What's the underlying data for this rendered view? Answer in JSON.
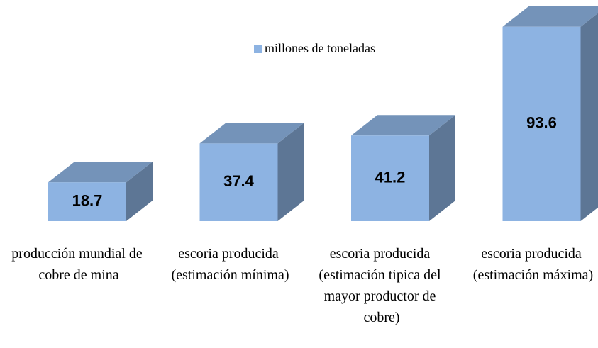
{
  "chart_data": {
    "type": "bar3d",
    "categories": [
      "producción mundial de cobre de mina",
      "escoria producida (estimación mínima)",
      "escoria producida (estimación tipica del mayor productor de cobre)",
      "escoria producida (estimación máxima)"
    ],
    "series": [
      {
        "name": "millones de toneladas",
        "color": "#8db3e2",
        "values": [
          18.7,
          37.4,
          41.2,
          93.6
        ]
      }
    ],
    "ylim": [
      0,
      100
    ],
    "legend": "top"
  }
}
